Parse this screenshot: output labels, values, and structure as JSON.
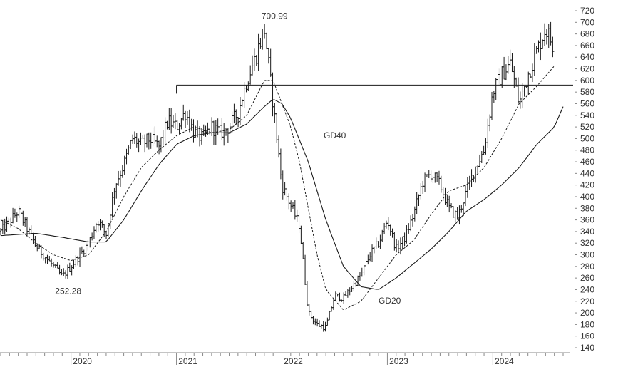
{
  "chart_data": {
    "type": "ohlc",
    "title": "",
    "xlabel": "",
    "ylabel": "",
    "y_range": [
      130,
      730
    ],
    "y_ticks": [
      140,
      160,
      180,
      200,
      220,
      240,
      260,
      280,
      300,
      320,
      340,
      360,
      380,
      400,
      420,
      440,
      460,
      480,
      500,
      520,
      540,
      560,
      580,
      600,
      620,
      640,
      660,
      680,
      700,
      720
    ],
    "y_axis_side": "right",
    "grid": false,
    "x_labels": [
      "2020",
      "2021",
      "2022",
      "2023",
      "2024"
    ],
    "x_range": [
      "2019-05",
      "2024-09"
    ],
    "series_labels": [
      {
        "id": "ma20",
        "text": "GD20",
        "style": "dashed"
      },
      {
        "id": "ma40",
        "text": "GD40",
        "style": "solid"
      }
    ],
    "annotations": [
      {
        "text": "700.99",
        "date": "2021-11",
        "value": 700.99
      },
      {
        "text": "252.28",
        "date": "2019-12",
        "value": 252.28
      }
    ],
    "horizontal_line": {
      "value": 592,
      "from": "2021-01",
      "to": "2024-09"
    },
    "close_path": [
      [
        "2019-05",
        340
      ],
      [
        "2019-07",
        375
      ],
      [
        "2019-09",
        315
      ],
      [
        "2019-11",
        280
      ],
      [
        "2019-12",
        262
      ],
      [
        "2020-01",
        280
      ],
      [
        "2020-02",
        300
      ],
      [
        "2020-03",
        320
      ],
      [
        "2020-04",
        360
      ],
      [
        "2020-05",
        335
      ],
      [
        "2020-06",
        420
      ],
      [
        "2020-07",
        455
      ],
      [
        "2020-08",
        500
      ],
      [
        "2020-09",
        490
      ],
      [
        "2020-10",
        500
      ],
      [
        "2020-11",
        485
      ],
      [
        "2020-12",
        530
      ],
      [
        "2021-01",
        520
      ],
      [
        "2021-02",
        545
      ],
      [
        "2021-03",
        510
      ],
      [
        "2021-04",
        500
      ],
      [
        "2021-05",
        520
      ],
      [
        "2021-06",
        510
      ],
      [
        "2021-07",
        520
      ],
      [
        "2021-08",
        545
      ],
      [
        "2021-09",
        600
      ],
      [
        "2021-10",
        640
      ],
      [
        "2021-11",
        690
      ],
      [
        "2021-12",
        560
      ],
      [
        "2022-01",
        420
      ],
      [
        "2022-02",
        385
      ],
      [
        "2022-03",
        350
      ],
      [
        "2022-04",
        200
      ],
      [
        "2022-05",
        180
      ],
      [
        "2022-06",
        175
      ],
      [
        "2022-07",
        230
      ],
      [
        "2022-08",
        225
      ],
      [
        "2022-09",
        245
      ],
      [
        "2022-10",
        265
      ],
      [
        "2022-11",
        300
      ],
      [
        "2022-12",
        320
      ],
      [
        "2023-01",
        360
      ],
      [
        "2023-02",
        310
      ],
      [
        "2023-03",
        330
      ],
      [
        "2023-04",
        370
      ],
      [
        "2023-05",
        425
      ],
      [
        "2023-06",
        440
      ],
      [
        "2023-07",
        420
      ],
      [
        "2023-08",
        380
      ],
      [
        "2023-09",
        365
      ],
      [
        "2023-10",
        410
      ],
      [
        "2023-11",
        450
      ],
      [
        "2023-12",
        480
      ],
      [
        "2024-01",
        580
      ],
      [
        "2024-02",
        610
      ],
      [
        "2024-03",
        630
      ],
      [
        "2024-04",
        560
      ],
      [
        "2024-05",
        610
      ],
      [
        "2024-06",
        650
      ],
      [
        "2024-07",
        690
      ],
      [
        "2024-08",
        655
      ]
    ],
    "ma20_path": [
      [
        "2019-05",
        360
      ],
      [
        "2019-07",
        345
      ],
      [
        "2019-09",
        320
      ],
      [
        "2019-11",
        300
      ],
      [
        "2020-01",
        290
      ],
      [
        "2020-03",
        300
      ],
      [
        "2020-05",
        340
      ],
      [
        "2020-07",
        400
      ],
      [
        "2020-09",
        450
      ],
      [
        "2020-11",
        480
      ],
      [
        "2021-01",
        505
      ],
      [
        "2021-03",
        520
      ],
      [
        "2021-05",
        510
      ],
      [
        "2021-07",
        515
      ],
      [
        "2021-09",
        540
      ],
      [
        "2021-11",
        600
      ],
      [
        "2021-12",
        600
      ],
      [
        "2022-01",
        560
      ],
      [
        "2022-02",
        520
      ],
      [
        "2022-03",
        460
      ],
      [
        "2022-04",
        380
      ],
      [
        "2022-05",
        300
      ],
      [
        "2022-06",
        240
      ],
      [
        "2022-08",
        205
      ],
      [
        "2022-10",
        220
      ],
      [
        "2022-12",
        260
      ],
      [
        "2023-02",
        300
      ],
      [
        "2023-04",
        325
      ],
      [
        "2023-06",
        370
      ],
      [
        "2023-08",
        410
      ],
      [
        "2023-10",
        420
      ],
      [
        "2023-12",
        450
      ],
      [
        "2024-02",
        500
      ],
      [
        "2024-04",
        560
      ],
      [
        "2024-06",
        590
      ],
      [
        "2024-08",
        625
      ]
    ],
    "ma40_path": [
      [
        "2019-05",
        333
      ],
      [
        "2019-09",
        337
      ],
      [
        "2019-12",
        330
      ],
      [
        "2020-03",
        322
      ],
      [
        "2020-05",
        322
      ],
      [
        "2020-07",
        360
      ],
      [
        "2020-09",
        410
      ],
      [
        "2020-11",
        455
      ],
      [
        "2021-01",
        490
      ],
      [
        "2021-03",
        505
      ],
      [
        "2021-05",
        510
      ],
      [
        "2021-07",
        510
      ],
      [
        "2021-09",
        525
      ],
      [
        "2021-11",
        555
      ],
      [
        "2021-12",
        568
      ],
      [
        "2022-01",
        560
      ],
      [
        "2022-02",
        535
      ],
      [
        "2022-04",
        460
      ],
      [
        "2022-06",
        360
      ],
      [
        "2022-08",
        280
      ],
      [
        "2022-10",
        245
      ],
      [
        "2022-12",
        240
      ],
      [
        "2023-02",
        260
      ],
      [
        "2023-04",
        285
      ],
      [
        "2023-06",
        310
      ],
      [
        "2023-08",
        340
      ],
      [
        "2023-10",
        375
      ],
      [
        "2023-12",
        395
      ],
      [
        "2024-02",
        420
      ],
      [
        "2024-04",
        450
      ],
      [
        "2024-06",
        490
      ],
      [
        "2024-08",
        520
      ],
      [
        "2024-09",
        555
      ]
    ]
  }
}
